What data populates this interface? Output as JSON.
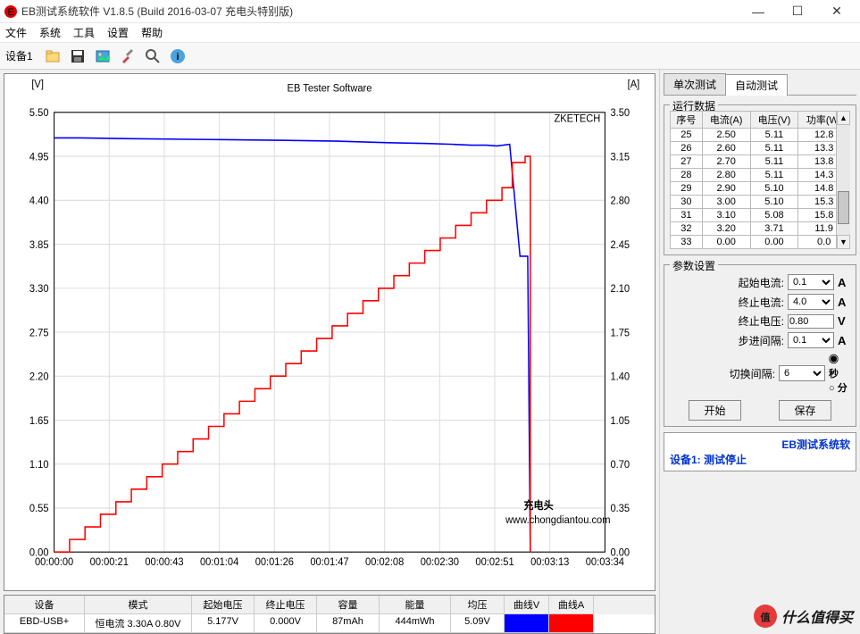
{
  "window": {
    "title": "EB测试系统软件 V1.8.5 (Build 2016-03-07 充电头特别版)"
  },
  "menu": [
    "文件",
    "系统",
    "工具",
    "设置",
    "帮助"
  ],
  "toolbar": {
    "device": "设备1"
  },
  "chart": {
    "title": "EB Tester Software",
    "watermark": "ZKETECH",
    "watermark2a": "充电头",
    "watermark2b": "www.chongdiantou.com",
    "left_axis": {
      "label": "[V]",
      "ticks": [
        "5.50",
        "4.95",
        "4.40",
        "3.85",
        "3.30",
        "2.75",
        "2.20",
        "1.65",
        "1.10",
        "0.55",
        "0.00"
      ],
      "min": 0,
      "max": 5.5
    },
    "right_axis": {
      "label": "[A]",
      "ticks": [
        "3.50",
        "3.15",
        "2.80",
        "2.45",
        "2.10",
        "1.75",
        "1.40",
        "1.05",
        "0.70",
        "0.35",
        "0.00"
      ],
      "min": 0,
      "max": 3.5
    },
    "x_axis": {
      "ticks": [
        "00:00:00",
        "00:00:21",
        "00:00:43",
        "00:01:04",
        "00:01:26",
        "00:01:47",
        "00:02:08",
        "00:02:30",
        "00:02:51",
        "00:03:13",
        "00:03:34"
      ],
      "max_sec": 214
    },
    "voltage_line_color": "#0000ff",
    "current_line_color": "#ff0000",
    "grid_color": "#dddddd",
    "background": "#ffffff",
    "voltage_points": [
      [
        0,
        5.18
      ],
      [
        10,
        5.18
      ],
      [
        30,
        5.17
      ],
      [
        60,
        5.16
      ],
      [
        90,
        5.15
      ],
      [
        110,
        5.14
      ],
      [
        130,
        5.12
      ],
      [
        145,
        5.11
      ],
      [
        155,
        5.1
      ],
      [
        162,
        5.09
      ],
      [
        168,
        5.09
      ],
      [
        172,
        5.08
      ],
      [
        177,
        5.1
      ],
      [
        181,
        3.7
      ],
      [
        184,
        3.7
      ],
      [
        185,
        0
      ]
    ],
    "current_steps": [
      [
        0,
        0.0
      ],
      [
        6,
        0.1
      ],
      [
        12,
        0.2
      ],
      [
        18,
        0.3
      ],
      [
        24,
        0.4
      ],
      [
        30,
        0.5
      ],
      [
        36,
        0.6
      ],
      [
        42,
        0.7
      ],
      [
        48,
        0.8
      ],
      [
        54,
        0.9
      ],
      [
        60,
        1.0
      ],
      [
        66,
        1.1
      ],
      [
        72,
        1.2
      ],
      [
        78,
        1.3
      ],
      [
        84,
        1.4
      ],
      [
        90,
        1.5
      ],
      [
        96,
        1.6
      ],
      [
        102,
        1.7
      ],
      [
        108,
        1.8
      ],
      [
        114,
        1.9
      ],
      [
        120,
        2.0
      ],
      [
        126,
        2.1
      ],
      [
        132,
        2.2
      ],
      [
        138,
        2.3
      ],
      [
        144,
        2.4
      ],
      [
        150,
        2.5
      ],
      [
        156,
        2.6
      ],
      [
        162,
        2.7
      ],
      [
        168,
        2.8
      ],
      [
        174,
        2.9
      ],
      [
        178,
        3.1
      ],
      [
        183,
        3.15
      ],
      [
        185,
        0
      ]
    ]
  },
  "bottom": {
    "cols": [
      "设备",
      "模式",
      "起始电压",
      "终止电压",
      "容量",
      "能量",
      "均压",
      "曲线V",
      "曲线A"
    ],
    "widths": [
      90,
      120,
      70,
      70,
      70,
      80,
      60,
      50,
      50
    ],
    "row": [
      "EBD-USB+",
      "恒电流  3.30A 0.80V",
      "5.177V",
      "0.000V",
      "87mAh",
      "444mWh",
      "5.09V",
      "",
      ""
    ]
  },
  "tabs": {
    "single": "单次测试",
    "auto": "自动测试"
  },
  "datagrid": {
    "group": "运行数据",
    "cols": [
      "序号",
      "电流(A)",
      "电压(V)",
      "功率(W)"
    ],
    "rows": [
      [
        "25",
        "2.50",
        "5.11",
        "12.8"
      ],
      [
        "26",
        "2.60",
        "5.11",
        "13.3"
      ],
      [
        "27",
        "2.70",
        "5.11",
        "13.8"
      ],
      [
        "28",
        "2.80",
        "5.11",
        "14.3"
      ],
      [
        "29",
        "2.90",
        "5.10",
        "14.8"
      ],
      [
        "30",
        "3.00",
        "5.10",
        "15.3"
      ],
      [
        "31",
        "3.10",
        "5.08",
        "15.8"
      ],
      [
        "32",
        "3.20",
        "3.71",
        "11.9"
      ],
      [
        "33",
        "0.00",
        "0.00",
        "0.0"
      ]
    ]
  },
  "params": {
    "group": "参数设置",
    "start_current_label": "起始电流:",
    "start_current": "0.1",
    "end_current_label": "终止电流:",
    "end_current": "4.0",
    "end_voltage_label": "终止电压:",
    "end_voltage": "0.80",
    "step_interval_label": "步进间隔:",
    "step_interval": "0.1",
    "switch_interval_label": "切换间隔:",
    "switch_interval": "6",
    "unit_sec": "秒",
    "unit_min": "分",
    "start_btn": "开始",
    "save_btn": "保存"
  },
  "status": {
    "l1": "EB测试系统软",
    "l2": "设备1: 测试停止"
  },
  "footer_brand": "值得买"
}
